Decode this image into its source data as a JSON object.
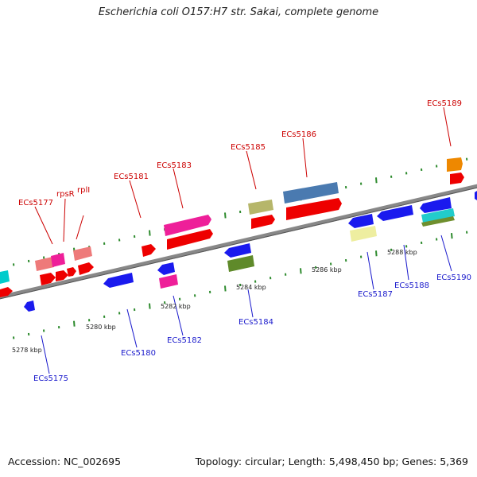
{
  "title": "Escherichia coli O157:H7 str. Sakai, complete genome",
  "footer": {
    "accession": "Accession: NC_002695",
    "topology": "Topology: circular; Length: 5,498,450 bp; Genes: 5,369"
  },
  "colors": {
    "backbone": "#888888",
    "tick": "#2e8b2e",
    "label_top": "#cc0000",
    "label_bottom": "#1a1acc"
  },
  "scale_labels": [
    "5278 kbp",
    "5280 kbp",
    "5282 kbp",
    "5284 kbp",
    "5286 kbp",
    "5288 kbp"
  ],
  "gene_labels_top": [
    "ECs5177",
    "rpsR",
    "rplI",
    "ECs5181",
    "ECs5183",
    "ECs5185",
    "ECs5186",
    "ECs5189"
  ],
  "gene_labels_bottom": [
    "ECs5175",
    "ECs5180",
    "ECs5182",
    "ECs5184",
    "ECs5187",
    "ECs5188",
    "ECs5190"
  ]
}
